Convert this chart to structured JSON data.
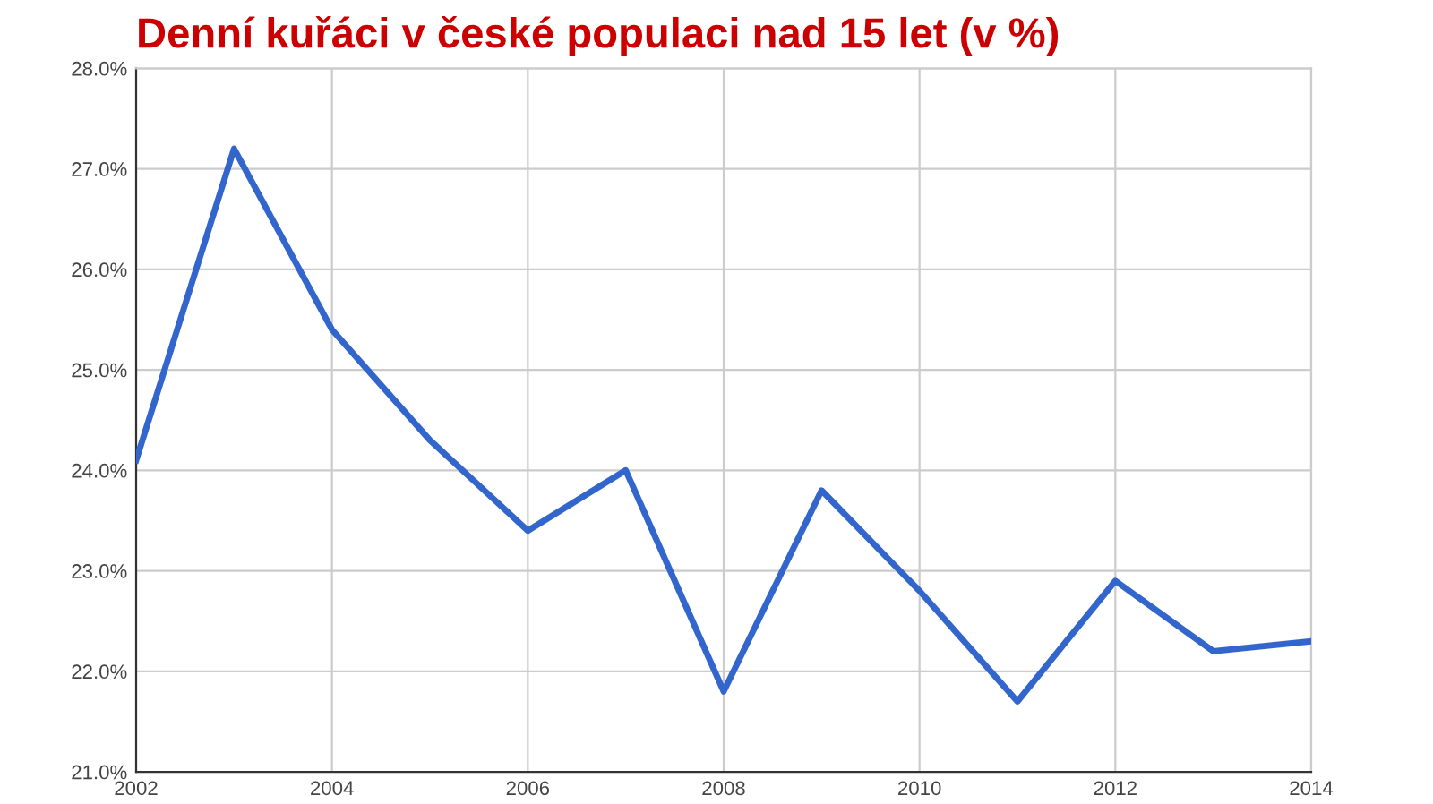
{
  "chart_data": {
    "type": "line",
    "title": "Denní kuřáci v české populaci nad 15 let (v %)",
    "x": [
      2002,
      2003,
      2004,
      2005,
      2006,
      2007,
      2008,
      2009,
      2010,
      2011,
      2012,
      2013,
      2014
    ],
    "series": [
      {
        "color": "#3366cc",
        "values": [
          24.1,
          27.2,
          25.4,
          24.3,
          23.4,
          24.0,
          21.8,
          23.8,
          22.8,
          21.7,
          22.9,
          22.2,
          22.3
        ]
      }
    ],
    "xlim": [
      2002,
      2014
    ],
    "xticks": [
      2002,
      2004,
      2006,
      2008,
      2010,
      2012,
      2014
    ],
    "ylim": [
      21,
      28
    ],
    "yticks": [
      {
        "value": 21,
        "label": "21.0%"
      },
      {
        "value": 22,
        "label": "22.0%"
      },
      {
        "value": 23,
        "label": "23.0%"
      },
      {
        "value": 24,
        "label": "24.0%"
      },
      {
        "value": 25,
        "label": "25.0%"
      },
      {
        "value": 26,
        "label": "26.0%"
      },
      {
        "value": 27,
        "label": "27.0%"
      },
      {
        "value": 28,
        "label": "28.0%"
      }
    ],
    "grid": true,
    "marker": "none",
    "line_style": "solid"
  }
}
